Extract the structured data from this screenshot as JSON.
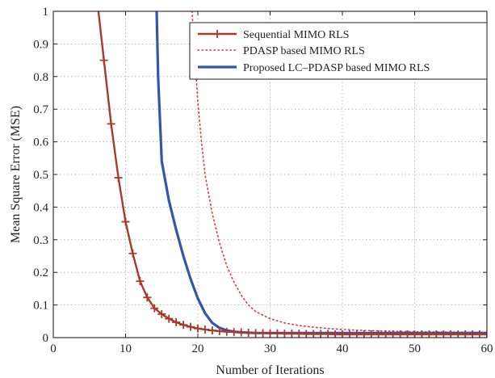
{
  "chart_data": {
    "type": "line",
    "xlabel": "Number of Iterations",
    "ylabel": "Mean Square Error (MSE)",
    "xlim": [
      0,
      60
    ],
    "ylim": [
      0,
      1
    ],
    "xticks": [
      "0",
      "10",
      "20",
      "30",
      "40",
      "50",
      "60"
    ],
    "yticks": [
      "0",
      "0.1",
      "0.2",
      "0.3",
      "0.4",
      "0.5",
      "0.6",
      "0.7",
      "0.8",
      "0.9",
      "1"
    ],
    "grid": true,
    "legend_position": "top-right",
    "series": [
      {
        "name": "Sequential MIMO RLS",
        "color": "#a83a2a",
        "style": "solid-with-plus-markers",
        "x": [
          7,
          8,
          9,
          10,
          11,
          12,
          13,
          14,
          15,
          16,
          17,
          18,
          19,
          20,
          21,
          22,
          23,
          24,
          25,
          26,
          27,
          28,
          29,
          30,
          31,
          32,
          33,
          34,
          35,
          36,
          37,
          38,
          39,
          40,
          41,
          42,
          43,
          44,
          45,
          46,
          47,
          48,
          49,
          50,
          51,
          52,
          53,
          54,
          55,
          56,
          57,
          58,
          59,
          60
        ],
        "y": [
          0.85,
          0.655,
          0.49,
          0.355,
          0.258,
          0.173,
          0.123,
          0.09,
          0.072,
          0.058,
          0.047,
          0.039,
          0.033,
          0.028,
          0.025,
          0.022,
          0.02,
          0.018,
          0.017,
          0.016,
          0.015,
          0.014,
          0.014,
          0.013,
          0.013,
          0.012,
          0.012,
          0.012,
          0.011,
          0.011,
          0.011,
          0.011,
          0.01,
          0.01,
          0.01,
          0.01,
          0.01,
          0.01,
          0.01,
          0.01,
          0.01,
          0.01,
          0.01,
          0.01,
          0.01,
          0.01,
          0.01,
          0.01,
          0.01,
          0.01,
          0.01,
          0.01,
          0.01,
          0.01
        ]
      },
      {
        "name": "PDASP based MIMO RLS",
        "color": "#e03a3a",
        "style": "dotted",
        "x": [
          19.2,
          19.5,
          20,
          20.5,
          21,
          22,
          23,
          24,
          25,
          26,
          27,
          28,
          30,
          32,
          34,
          36,
          38,
          40,
          43,
          46,
          50,
          55,
          60
        ],
        "y": [
          1.0,
          0.9,
          0.72,
          0.6,
          0.5,
          0.38,
          0.29,
          0.22,
          0.17,
          0.13,
          0.1,
          0.08,
          0.058,
          0.045,
          0.037,
          0.032,
          0.028,
          0.025,
          0.022,
          0.02,
          0.018,
          0.017,
          0.016
        ]
      },
      {
        "name": "Proposed LC–PDASP based MIMO RLS",
        "color": "#3355aa",
        "style": "solid-thick",
        "x": [
          14.3,
          14.5,
          15,
          16,
          17,
          18,
          19,
          20,
          21,
          22,
          23,
          24,
          25,
          26,
          27,
          28,
          30,
          35,
          40,
          45,
          50,
          55,
          60
        ],
        "y": [
          1.0,
          0.8,
          0.54,
          0.42,
          0.33,
          0.25,
          0.18,
          0.12,
          0.075,
          0.045,
          0.03,
          0.022,
          0.018,
          0.016,
          0.015,
          0.014,
          0.014,
          0.014,
          0.014,
          0.014,
          0.014,
          0.014,
          0.014
        ]
      }
    ]
  }
}
